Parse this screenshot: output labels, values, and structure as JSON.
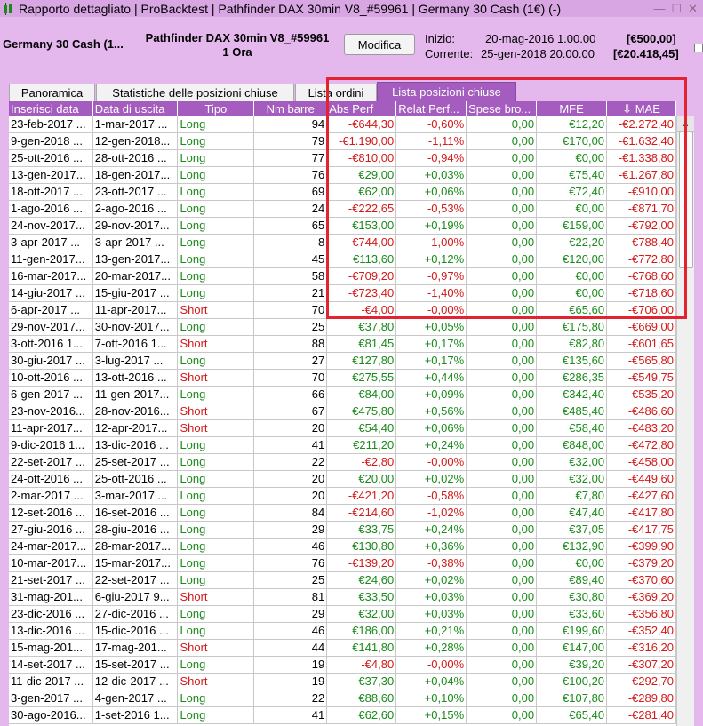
{
  "titlebar": {
    "title": "Rapporto dettagliato | ProBacktest | Pathfinder DAX 30min V8_#59961 | Germany 30 Cash (1€) (-)",
    "controls": [
      "—",
      "☐",
      "✕"
    ]
  },
  "header": {
    "instrument": "Germany 30 Cash (1...",
    "strategy_line1": "Pathfinder DAX 30min V8_#59961",
    "strategy_line2": "1 Ora",
    "modify_label": "Modifica",
    "start_label": "Inizio:",
    "start_value": "20-mag-2016 1.00.00",
    "start_capital": "[€500,00]",
    "current_label": "Corrente:",
    "current_value": "25-gen-2018 20.00.00",
    "current_capital": "[€20.418,45]"
  },
  "tabs": [
    {
      "label": "Panoramica",
      "active": false
    },
    {
      "label": "Statistiche delle posizioni chiuse",
      "active": false
    },
    {
      "label": "Lista ordini",
      "active": false
    },
    {
      "label": "Lista posizioni chiuse",
      "active": true
    }
  ],
  "columns": [
    "Inserisci data",
    "Data di uscita",
    "Tipo",
    "Nm barre",
    "Abs Perf",
    "Relat Perf...",
    "Spese bro...",
    "MFE",
    "MAE"
  ],
  "mae_sort_icon": "arrow-down-icon",
  "colors": {
    "accent": "#a45cbe",
    "long": "#1a8a1a",
    "short": "#d21a1a",
    "highlight": "#e3232f"
  },
  "rows": [
    {
      "entry": "23-feb-2017 ...",
      "exit": "1-mar-2017 ...",
      "type": "Long",
      "bars": "94",
      "abs": "-€644,30",
      "rel": "-0,60%",
      "fees": "0,00",
      "mfe": "€12,20",
      "mae": "-€2.272,40"
    },
    {
      "entry": "9-gen-2018 ...",
      "exit": "12-gen-2018...",
      "type": "Long",
      "bars": "79",
      "abs": "-€1.190,00",
      "rel": "-1,11%",
      "fees": "0,00",
      "mfe": "€170,00",
      "mae": "-€1.632,40"
    },
    {
      "entry": "25-ott-2016 ...",
      "exit": "28-ott-2016 ...",
      "type": "Long",
      "bars": "77",
      "abs": "-€810,00",
      "rel": "-0,94%",
      "fees": "0,00",
      "mfe": "€0,00",
      "mae": "-€1.338,80"
    },
    {
      "entry": "13-gen-2017...",
      "exit": "18-gen-2017...",
      "type": "Long",
      "bars": "76",
      "abs": "€29,00",
      "rel": "+0,03%",
      "fees": "0,00",
      "mfe": "€75,40",
      "mae": "-€1.267,80"
    },
    {
      "entry": "18-ott-2017 ...",
      "exit": "23-ott-2017 ...",
      "type": "Long",
      "bars": "69",
      "abs": "€62,00",
      "rel": "+0,06%",
      "fees": "0,00",
      "mfe": "€72,40",
      "mae": "-€910,00"
    },
    {
      "entry": "1-ago-2016 ...",
      "exit": "2-ago-2016 ...",
      "type": "Long",
      "bars": "24",
      "abs": "-€222,65",
      "rel": "-0,53%",
      "fees": "0,00",
      "mfe": "€0,00",
      "mae": "-€871,70"
    },
    {
      "entry": "24-nov-2017...",
      "exit": "29-nov-2017...",
      "type": "Long",
      "bars": "65",
      "abs": "€153,00",
      "rel": "+0,19%",
      "fees": "0,00",
      "mfe": "€159,00",
      "mae": "-€792,00"
    },
    {
      "entry": "3-apr-2017 ...",
      "exit": "3-apr-2017 ...",
      "type": "Long",
      "bars": "8",
      "abs": "-€744,00",
      "rel": "-1,00%",
      "fees": "0,00",
      "mfe": "€22,20",
      "mae": "-€788,40"
    },
    {
      "entry": "11-gen-2017...",
      "exit": "13-gen-2017...",
      "type": "Long",
      "bars": "45",
      "abs": "€113,60",
      "rel": "+0,12%",
      "fees": "0,00",
      "mfe": "€120,00",
      "mae": "-€772,80"
    },
    {
      "entry": "16-mar-2017...",
      "exit": "20-mar-2017...",
      "type": "Long",
      "bars": "58",
      "abs": "-€709,20",
      "rel": "-0,97%",
      "fees": "0,00",
      "mfe": "€0,00",
      "mae": "-€768,60"
    },
    {
      "entry": "14-giu-2017 ...",
      "exit": "15-giu-2017 ...",
      "type": "Long",
      "bars": "21",
      "abs": "-€723,40",
      "rel": "-1,40%",
      "fees": "0,00",
      "mfe": "€0,00",
      "mae": "-€718,60"
    },
    {
      "entry": "6-apr-2017 ...",
      "exit": "11-apr-2017...",
      "type": "Short",
      "bars": "70",
      "abs": "-€4,00",
      "rel": "-0,00%",
      "fees": "0,00",
      "mfe": "€65,60",
      "mae": "-€706,00"
    },
    {
      "entry": "29-nov-2017...",
      "exit": "30-nov-2017...",
      "type": "Long",
      "bars": "25",
      "abs": "€37,80",
      "rel": "+0,05%",
      "fees": "0,00",
      "mfe": "€175,80",
      "mae": "-€669,00"
    },
    {
      "entry": "3-ott-2016 1...",
      "exit": "7-ott-2016 1...",
      "type": "Short",
      "bars": "88",
      "abs": "€81,45",
      "rel": "+0,17%",
      "fees": "0,00",
      "mfe": "€82,80",
      "mae": "-€601,65"
    },
    {
      "entry": "30-giu-2017 ...",
      "exit": "3-lug-2017 ...",
      "type": "Long",
      "bars": "27",
      "abs": "€127,80",
      "rel": "+0,17%",
      "fees": "0,00",
      "mfe": "€135,60",
      "mae": "-€565,80"
    },
    {
      "entry": "10-ott-2016 ...",
      "exit": "13-ott-2016 ...",
      "type": "Short",
      "bars": "70",
      "abs": "€275,55",
      "rel": "+0,44%",
      "fees": "0,00",
      "mfe": "€286,35",
      "mae": "-€549,75"
    },
    {
      "entry": "6-gen-2017 ...",
      "exit": "11-gen-2017...",
      "type": "Long",
      "bars": "66",
      "abs": "€84,00",
      "rel": "+0,09%",
      "fees": "0,00",
      "mfe": "€342,40",
      "mae": "-€535,20"
    },
    {
      "entry": "23-nov-2016...",
      "exit": "28-nov-2016...",
      "type": "Short",
      "bars": "67",
      "abs": "€475,80",
      "rel": "+0,56%",
      "fees": "0,00",
      "mfe": "€485,40",
      "mae": "-€486,60"
    },
    {
      "entry": "11-apr-2017...",
      "exit": "12-apr-2017...",
      "type": "Short",
      "bars": "20",
      "abs": "€54,40",
      "rel": "+0,06%",
      "fees": "0,00",
      "mfe": "€58,40",
      "mae": "-€483,20"
    },
    {
      "entry": "9-dic-2016 1...",
      "exit": "13-dic-2016 ...",
      "type": "Long",
      "bars": "41",
      "abs": "€211,20",
      "rel": "+0,24%",
      "fees": "0,00",
      "mfe": "€848,00",
      "mae": "-€472,80"
    },
    {
      "entry": "22-set-2017 ...",
      "exit": "25-set-2017 ...",
      "type": "Long",
      "bars": "22",
      "abs": "-€2,80",
      "rel": "-0,00%",
      "fees": "0,00",
      "mfe": "€32,00",
      "mae": "-€458,00"
    },
    {
      "entry": "24-ott-2016 ...",
      "exit": "25-ott-2016 ...",
      "type": "Long",
      "bars": "20",
      "abs": "€20,00",
      "rel": "+0,02%",
      "fees": "0,00",
      "mfe": "€32,00",
      "mae": "-€449,60"
    },
    {
      "entry": "2-mar-2017 ...",
      "exit": "3-mar-2017 ...",
      "type": "Long",
      "bars": "20",
      "abs": "-€421,20",
      "rel": "-0,58%",
      "fees": "0,00",
      "mfe": "€7,80",
      "mae": "-€427,60"
    },
    {
      "entry": "12-set-2016 ...",
      "exit": "16-set-2016 ...",
      "type": "Long",
      "bars": "84",
      "abs": "-€214,60",
      "rel": "-1,02%",
      "fees": "0,00",
      "mfe": "€47,40",
      "mae": "-€417,80"
    },
    {
      "entry": "27-giu-2016 ...",
      "exit": "28-giu-2016 ...",
      "type": "Long",
      "bars": "29",
      "abs": "€33,75",
      "rel": "+0,24%",
      "fees": "0,00",
      "mfe": "€37,05",
      "mae": "-€417,75"
    },
    {
      "entry": "24-mar-2017...",
      "exit": "28-mar-2017...",
      "type": "Long",
      "bars": "46",
      "abs": "€130,80",
      "rel": "+0,36%",
      "fees": "0,00",
      "mfe": "€132,90",
      "mae": "-€399,90"
    },
    {
      "entry": "10-mar-2017...",
      "exit": "15-mar-2017...",
      "type": "Long",
      "bars": "76",
      "abs": "-€139,20",
      "rel": "-0,38%",
      "fees": "0,00",
      "mfe": "€0,00",
      "mae": "-€379,20"
    },
    {
      "entry": "21-set-2017 ...",
      "exit": "22-set-2017 ...",
      "type": "Long",
      "bars": "25",
      "abs": "€24,60",
      "rel": "+0,02%",
      "fees": "0,00",
      "mfe": "€89,40",
      "mae": "-€370,60"
    },
    {
      "entry": "31-mag-201...",
      "exit": "6-giu-2017 9...",
      "type": "Short",
      "bars": "81",
      "abs": "€33,50",
      "rel": "+0,03%",
      "fees": "0,00",
      "mfe": "€30,80",
      "mae": "-€369,20"
    },
    {
      "entry": "23-dic-2016 ...",
      "exit": "27-dic-2016 ...",
      "type": "Long",
      "bars": "29",
      "abs": "€32,00",
      "rel": "+0,03%",
      "fees": "0,00",
      "mfe": "€33,60",
      "mae": "-€356,80"
    },
    {
      "entry": "13-dic-2016 ...",
      "exit": "15-dic-2016 ...",
      "type": "Long",
      "bars": "46",
      "abs": "€186,00",
      "rel": "+0,21%",
      "fees": "0,00",
      "mfe": "€199,60",
      "mae": "-€352,40"
    },
    {
      "entry": "15-mag-201...",
      "exit": "17-mag-201...",
      "type": "Short",
      "bars": "44",
      "abs": "€141,80",
      "rel": "+0,28%",
      "fees": "0,00",
      "mfe": "€147,00",
      "mae": "-€316,20"
    },
    {
      "entry": "14-set-2017 ...",
      "exit": "15-set-2017 ...",
      "type": "Long",
      "bars": "19",
      "abs": "-€4,80",
      "rel": "-0,00%",
      "fees": "0,00",
      "mfe": "€39,20",
      "mae": "-€307,20"
    },
    {
      "entry": "11-dic-2017 ...",
      "exit": "12-dic-2017 ...",
      "type": "Short",
      "bars": "19",
      "abs": "€37,30",
      "rel": "+0,04%",
      "fees": "0,00",
      "mfe": "€100,20",
      "mae": "-€292,70"
    },
    {
      "entry": "3-gen-2017 ...",
      "exit": "4-gen-2017 ...",
      "type": "Long",
      "bars": "22",
      "abs": "€88,60",
      "rel": "+0,10%",
      "fees": "0,00",
      "mfe": "€107,80",
      "mae": "-€289,80"
    },
    {
      "entry": "30-ago-2016...",
      "exit": "1-set-2016 1...",
      "type": "Long",
      "bars": "41",
      "abs": "€62,60",
      "rel": "+0,15%",
      "fees": "0,00",
      "mfe": "€65,40",
      "mae": "-€281,40"
    }
  ]
}
